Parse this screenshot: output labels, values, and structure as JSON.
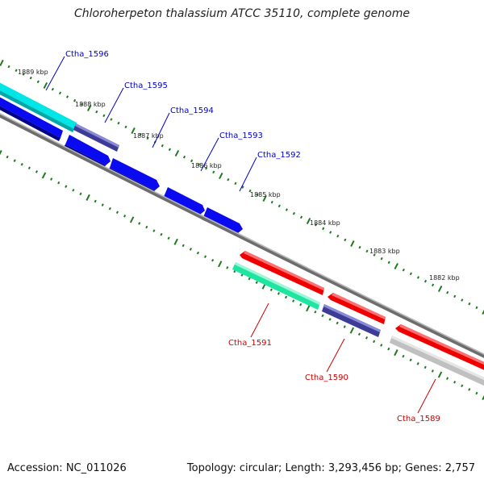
{
  "title": "Chloroherpeton thalassium ATCC 35110, complete genome",
  "footer": {
    "accession": "Accession: NC_011026",
    "stats": "Topology: circular; Length: 3,293,456 bp; Genes: 2,757"
  },
  "colors": {
    "backbone": "#808080",
    "tick": "#1e7a1e",
    "forward_label": "#0000cc",
    "reverse_label": "#cc0000",
    "blue_cds": "#0a0af0",
    "cyan_cds": "#00e5e5",
    "navy_cds": "#3c3c96",
    "red_cds": "#ee0000",
    "teal_cds": "#1ee6a0",
    "gray_cds": "#c0c0c0"
  },
  "kbp_labels": [
    "1889 kbp",
    "1888 kbp",
    "1887 kbp",
    "1886 kbp",
    "1885 kbp",
    "1884 kbp",
    "1883 kbp",
    "1882 kbp"
  ],
  "forward_genes": [
    "Ctha_1596",
    "Ctha_1595",
    "Ctha_1594",
    "Ctha_1593",
    "Ctha_1592"
  ],
  "reverse_genes": [
    "Ctha_1591",
    "Ctha_1590",
    "Ctha_1589"
  ]
}
